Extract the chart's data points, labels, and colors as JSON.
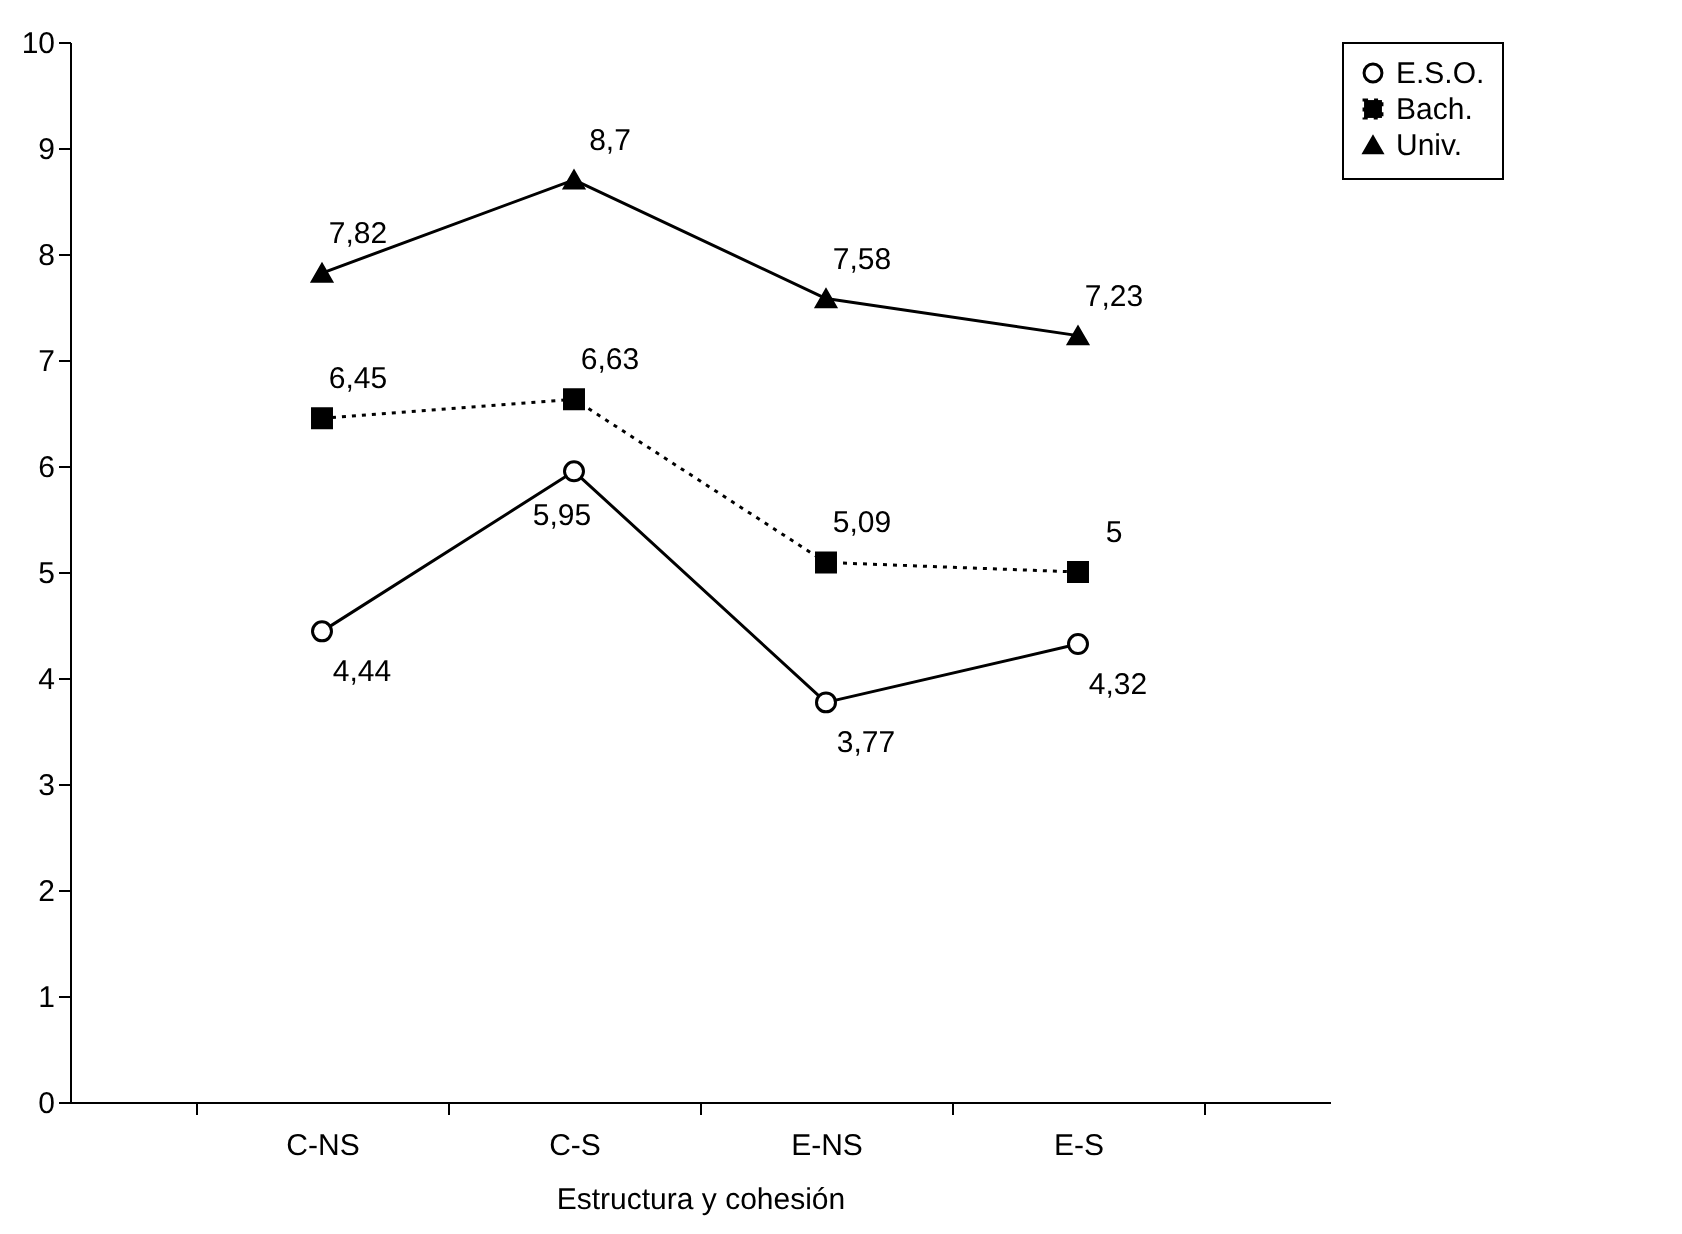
{
  "chart_data": {
    "type": "line",
    "xlabel": "Estructura y cohesión",
    "categories": [
      "C-NS",
      "C-S",
      "E-NS",
      "E-S"
    ],
    "series": [
      {
        "name": "E.S.O.",
        "color": "#000000",
        "marker": "circle",
        "line_style": "solid",
        "values": [
          4.44,
          5.95,
          3.77,
          4.32
        ],
        "value_labels": [
          "4,44",
          "5,95",
          "3,77",
          "4,32"
        ]
      },
      {
        "name": "Bach.",
        "color": "#000000",
        "marker": "square",
        "line_style": "dotted",
        "values": [
          6.45,
          6.63,
          5.09,
          5
        ],
        "value_labels": [
          "6,45",
          "6,63",
          "5,09",
          "5"
        ]
      },
      {
        "name": "Univ.",
        "color": "#000000",
        "marker": "triangle",
        "line_style": "solid",
        "values": [
          7.82,
          8.7,
          7.58,
          7.23
        ],
        "value_labels": [
          "7,82",
          "8,7",
          "7,58",
          "7,23"
        ]
      }
    ],
    "ylim": [
      0,
      10
    ],
    "yticks": [
      0,
      1,
      2,
      3,
      4,
      5,
      6,
      7,
      8,
      9,
      10
    ],
    "grid": false,
    "legend": "right"
  }
}
